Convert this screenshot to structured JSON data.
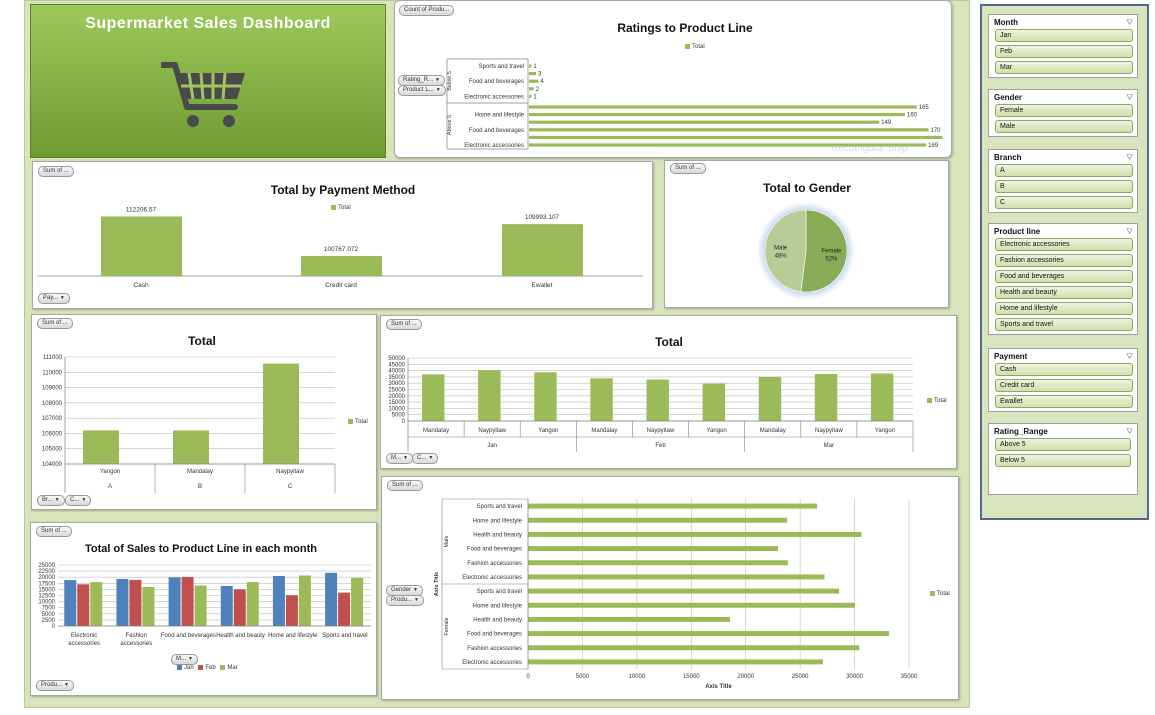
{
  "header": {
    "title": "Supermarket  Sales  Dashboard",
    "icon": "shopping-cart-icon"
  },
  "colors": {
    "green": "#9bbb59",
    "blue": "#4f81bd",
    "red": "#c0504d",
    "header_bg": "#8cba4c"
  },
  "ratings_chart": {
    "filter_pill": "Count of Produ...",
    "row_pills": [
      "Rating_R...",
      "Product L..."
    ],
    "watermark": "Rectangular Snip",
    "chart_data": {
      "type": "bar",
      "orientation": "horizontal",
      "title": "Ratings to Product Line",
      "legend": "Total",
      "groups": [
        {
          "name": "Below 5",
          "categories": [
            "Sports and travel",
            "",
            "Food and beverages",
            "",
            "Electronic accessories"
          ],
          "values": [
            1,
            3,
            4,
            2,
            1
          ]
        },
        {
          "name": "Above 5",
          "categories": [
            "",
            "Home and lifestyle",
            "",
            "Food and beverages",
            "",
            "Electronic accessories"
          ],
          "values": [
            165,
            160,
            149,
            170,
            176,
            169
          ]
        }
      ]
    }
  },
  "payment_chart": {
    "filter_pill": "Sum of ...",
    "axis_pill": "Pay...",
    "chart_data": {
      "type": "bar",
      "title": "Total by Payment Method",
      "legend": "Total",
      "categories": [
        "Cash",
        "Credit card",
        "Ewallet"
      ],
      "values": [
        112206.57,
        100767.072,
        109993.107
      ],
      "value_labels": [
        "112206.57",
        "100767.072",
        "109993.107"
      ],
      "ylim": [
        95000,
        113500
      ]
    }
  },
  "gender_chart": {
    "filter_pill": "Sum of ...",
    "chart_data": {
      "type": "pie",
      "title": "Total to Gender",
      "slices": [
        {
          "name": "Female",
          "pct": 52,
          "label": "52%"
        },
        {
          "name": "Male",
          "pct": 48,
          "label": "48%"
        }
      ]
    }
  },
  "branch_chart": {
    "filter_pill": "Sum of ...",
    "axis_pills": [
      "Br...",
      "C..."
    ],
    "chart_data": {
      "type": "bar",
      "title": "Total",
      "legend": "Total",
      "categories": [
        "Yangon",
        "Mandalay",
        "Naypyitaw"
      ],
      "groups": [
        "A",
        "B",
        "C"
      ],
      "values": [
        106200,
        106197,
        110568
      ],
      "yticks": [
        104000,
        105000,
        106000,
        107000,
        108000,
        109000,
        110000,
        111000
      ],
      "ylim": [
        104000,
        111000
      ]
    }
  },
  "month_city_chart": {
    "filter_pill": "Sum of ...",
    "axis_pills": [
      "M...",
      "C..."
    ],
    "chart_data": {
      "type": "bar",
      "title": "Total",
      "legend": "Total",
      "categories": [
        "Mandalay",
        "Naypyitaw",
        "Yangon",
        "Mandalay",
        "Naypyitaw",
        "Yangon",
        "Mandalay",
        "Naypyitaw",
        "Yangon"
      ],
      "groups": [
        "Jan",
        "Feb",
        "Mar"
      ],
      "values": [
        37000,
        40400,
        38700,
        33900,
        32900,
        29600,
        35000,
        37300,
        37700
      ],
      "yticks": [
        0,
        5000,
        10000,
        15000,
        20000,
        25000,
        30000,
        35000,
        40000,
        45000,
        50000
      ],
      "ylim": [
        0,
        50000
      ]
    }
  },
  "monthly_chart": {
    "filter_pill": "Sum of ...",
    "legend_pill": "M...",
    "axis_pill": "Produ...",
    "chart_data": {
      "type": "bar",
      "title": "Total of Sales to Product Line in each month",
      "categories": [
        "Electronic accessories",
        "Fashion accessories",
        "Food and beverages",
        "Health and beauty",
        "Home and lifestyle",
        "Sports and travel"
      ],
      "series": [
        {
          "name": "Jan",
          "values": [
            18800,
            19300,
            19900,
            16400,
            20500,
            21800
          ]
        },
        {
          "name": "Feb",
          "values": [
            17100,
            18900,
            20100,
            15000,
            12600,
            13700
          ]
        },
        {
          "name": "Mar",
          "values": [
            18000,
            16000,
            16600,
            18000,
            20700,
            19700
          ]
        }
      ],
      "yticks": [
        0,
        2500,
        5000,
        7500,
        10000,
        12500,
        15000,
        17500,
        20000,
        22500,
        25000
      ],
      "ylim": [
        0,
        25000
      ]
    }
  },
  "gender_line_chart": {
    "filter_pill": "Sum of ...",
    "row_pills": [
      "Gender",
      "Produ..."
    ],
    "chart_data": {
      "type": "bar",
      "orientation": "horizontal",
      "legend": "Total",
      "xlabel": "Axis Title",
      "ylabel": "Axis Title",
      "groups": [
        {
          "name": "Male",
          "categories": [
            "Sports and travel",
            "Home and lifestyle",
            "Health and beauty",
            "Food and beverages",
            "Fashion accessories",
            "Electronic accessories"
          ],
          "values": [
            26550,
            23800,
            30630,
            22970,
            23870,
            27240
          ]
        },
        {
          "name": "Female",
          "categories": [
            "Sports and travel",
            "Home and lifestyle",
            "Health and beauty",
            "Food and beverages",
            "Fashion accessories",
            "Electronic accessories"
          ],
          "values": [
            28580,
            30040,
            18560,
            33170,
            30440,
            27100
          ]
        }
      ],
      "xticks": [
        0,
        5000,
        10000,
        15000,
        20000,
        25000,
        30000,
        35000
      ],
      "xlim": [
        0,
        35000
      ]
    }
  },
  "slicers": [
    {
      "title": "Month",
      "items": [
        "Jan",
        "Feb",
        "Mar"
      ]
    },
    {
      "title": "Gender",
      "items": [
        "Female",
        "Male"
      ]
    },
    {
      "title": "Branch",
      "items": [
        "A",
        "B",
        "C"
      ]
    },
    {
      "title": "Product line",
      "items": [
        "Electronic accessories",
        "Fashion accessories",
        "Food and beverages",
        "Health and beauty",
        "Home and lifestyle",
        "Sports and travel"
      ]
    },
    {
      "title": "Payment",
      "items": [
        "Cash",
        "Credit card",
        "Ewallet"
      ]
    },
    {
      "title": "Rating_Range",
      "items": [
        "Above 5",
        "Below 5"
      ]
    }
  ]
}
